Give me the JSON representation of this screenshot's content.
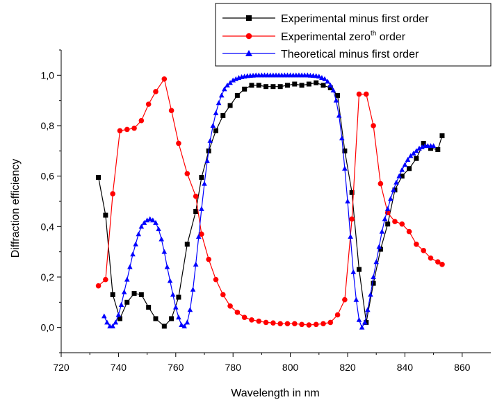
{
  "chart_data": {
    "type": "line",
    "xlabel": "Wavelength in nm",
    "ylabel": "Diffraction efficiency",
    "xlim": [
      720,
      870
    ],
    "ylim": [
      -0.1,
      1.1
    ],
    "xticks": [
      720,
      740,
      760,
      780,
      800,
      820,
      840,
      860
    ],
    "xtick_labels": [
      "720",
      "740",
      "760",
      "780",
      "800",
      "820",
      "840",
      "860"
    ],
    "yticks": [
      0.0,
      0.2,
      0.4,
      0.6,
      0.8,
      1.0
    ],
    "ytick_labels": [
      "0,0",
      "0,2",
      "0,4",
      "0,6",
      "0,8",
      "1,0"
    ],
    "grid": false,
    "legend_position": "top-right",
    "legend": [
      {
        "label_main": "Experimental minus first order",
        "label_sup": "",
        "label_tail": ""
      },
      {
        "label_main": "Experimental zero",
        "label_sup": "th",
        "label_tail": " order"
      },
      {
        "label_main": "Theoretical minus first order",
        "label_sup": "",
        "label_tail": ""
      }
    ],
    "series": [
      {
        "name": "Experimental minus first order",
        "color": "#000000",
        "marker": "square",
        "x": [
          733,
          735.5,
          738,
          740.5,
          743,
          745.5,
          748,
          750.5,
          753,
          756,
          758.5,
          761,
          764,
          767,
          769,
          771.5,
          774,
          776.5,
          779,
          781.5,
          784,
          786.5,
          789,
          791.5,
          794,
          796.5,
          799,
          801.5,
          804,
          806.5,
          809,
          811.5,
          814,
          816.5,
          819,
          821.5,
          824,
          826.5,
          829,
          831.5,
          834,
          836.5,
          839,
          841.5,
          844,
          846.5,
          849,
          851.5,
          853
        ],
        "y": [
          0.595,
          0.445,
          0.13,
          0.035,
          0.1,
          0.135,
          0.13,
          0.08,
          0.035,
          0.005,
          0.035,
          0.12,
          0.33,
          0.46,
          0.595,
          0.7,
          0.78,
          0.84,
          0.88,
          0.92,
          0.945,
          0.96,
          0.96,
          0.955,
          0.955,
          0.955,
          0.96,
          0.965,
          0.96,
          0.965,
          0.97,
          0.96,
          0.95,
          0.92,
          0.7,
          0.535,
          0.23,
          0.02,
          0.175,
          0.31,
          0.41,
          0.545,
          0.6,
          0.63,
          0.67,
          0.73,
          0.71,
          0.705,
          0.76
        ]
      },
      {
        "name": "Experimental zeroth order",
        "color": "#ff0000",
        "marker": "circle",
        "x": [
          733,
          735.5,
          738,
          740.5,
          743,
          745.5,
          748,
          750.5,
          753,
          756,
          758.5,
          761,
          764,
          767,
          769,
          771.5,
          774,
          776.5,
          779,
          781.5,
          784,
          786.5,
          789,
          791.5,
          794,
          796.5,
          799,
          801.5,
          804,
          806.5,
          809,
          811.5,
          814,
          816.5,
          819,
          821.5,
          824,
          826.5,
          829,
          831.5,
          834,
          836.5,
          839,
          841.5,
          844,
          846.5,
          849,
          851.5,
          853
        ],
        "y": [
          0.165,
          0.19,
          0.53,
          0.78,
          0.785,
          0.79,
          0.82,
          0.885,
          0.935,
          0.985,
          0.86,
          0.73,
          0.61,
          0.52,
          0.37,
          0.27,
          0.19,
          0.13,
          0.085,
          0.06,
          0.04,
          0.03,
          0.025,
          0.02,
          0.018,
          0.015,
          0.015,
          0.015,
          0.012,
          0.01,
          0.012,
          0.015,
          0.02,
          0.05,
          0.11,
          0.43,
          0.925,
          0.925,
          0.8,
          0.57,
          0.455,
          0.42,
          0.41,
          0.38,
          0.33,
          0.305,
          0.275,
          0.26,
          0.25
        ]
      },
      {
        "name": "Theoretical minus first order",
        "color": "#0000ff",
        "marker": "triangle",
        "x": [
          735,
          736,
          737,
          738,
          739,
          740,
          741,
          742,
          743,
          744,
          745,
          746,
          747,
          748,
          749,
          750,
          751,
          752,
          753,
          754,
          755,
          756,
          757,
          758,
          759,
          760,
          761,
          762,
          763,
          764,
          765,
          766,
          767,
          768,
          769,
          770,
          771,
          772,
          773,
          774,
          775,
          776,
          777,
          778,
          779,
          780,
          781,
          782,
          783,
          784,
          785,
          786,
          787,
          788,
          789,
          790,
          791,
          792,
          793,
          794,
          795,
          796,
          797,
          798,
          799,
          800,
          801,
          802,
          803,
          804,
          805,
          806,
          807,
          808,
          809,
          810,
          811,
          812,
          813,
          814,
          815,
          816,
          817,
          818,
          819,
          820,
          821,
          822,
          823,
          824,
          825,
          826,
          827,
          828,
          829,
          830,
          831,
          832,
          833,
          834,
          835,
          836,
          837,
          838,
          839,
          840,
          841,
          842,
          843,
          844,
          845,
          846,
          847,
          848,
          849,
          850
        ],
        "y": [
          0.045,
          0.02,
          0.005,
          0.005,
          0.02,
          0.05,
          0.09,
          0.14,
          0.19,
          0.24,
          0.29,
          0.33,
          0.37,
          0.4,
          0.415,
          0.425,
          0.43,
          0.425,
          0.415,
          0.39,
          0.35,
          0.3,
          0.24,
          0.185,
          0.13,
          0.08,
          0.04,
          0.01,
          0.005,
          0.02,
          0.07,
          0.15,
          0.25,
          0.36,
          0.47,
          0.57,
          0.66,
          0.74,
          0.8,
          0.85,
          0.89,
          0.92,
          0.945,
          0.96,
          0.97,
          0.98,
          0.985,
          0.99,
          0.993,
          0.995,
          0.997,
          0.998,
          0.999,
          1.0,
          1.0,
          1.0,
          1.0,
          1.0,
          1.0,
          1.0,
          1.0,
          1.0,
          1.0,
          1.0,
          1.0,
          1.0,
          1.0,
          1.0,
          1.0,
          1.0,
          1.0,
          1.0,
          0.999,
          0.998,
          0.997,
          0.995,
          0.99,
          0.985,
          0.975,
          0.96,
          0.94,
          0.9,
          0.84,
          0.75,
          0.63,
          0.5,
          0.36,
          0.22,
          0.11,
          0.03,
          0.0,
          0.02,
          0.07,
          0.13,
          0.2,
          0.26,
          0.32,
          0.38,
          0.43,
          0.47,
          0.51,
          0.545,
          0.575,
          0.6,
          0.625,
          0.645,
          0.665,
          0.68,
          0.69,
          0.7,
          0.71,
          0.715,
          0.72,
          0.72,
          0.72,
          0.72
        ]
      }
    ]
  }
}
